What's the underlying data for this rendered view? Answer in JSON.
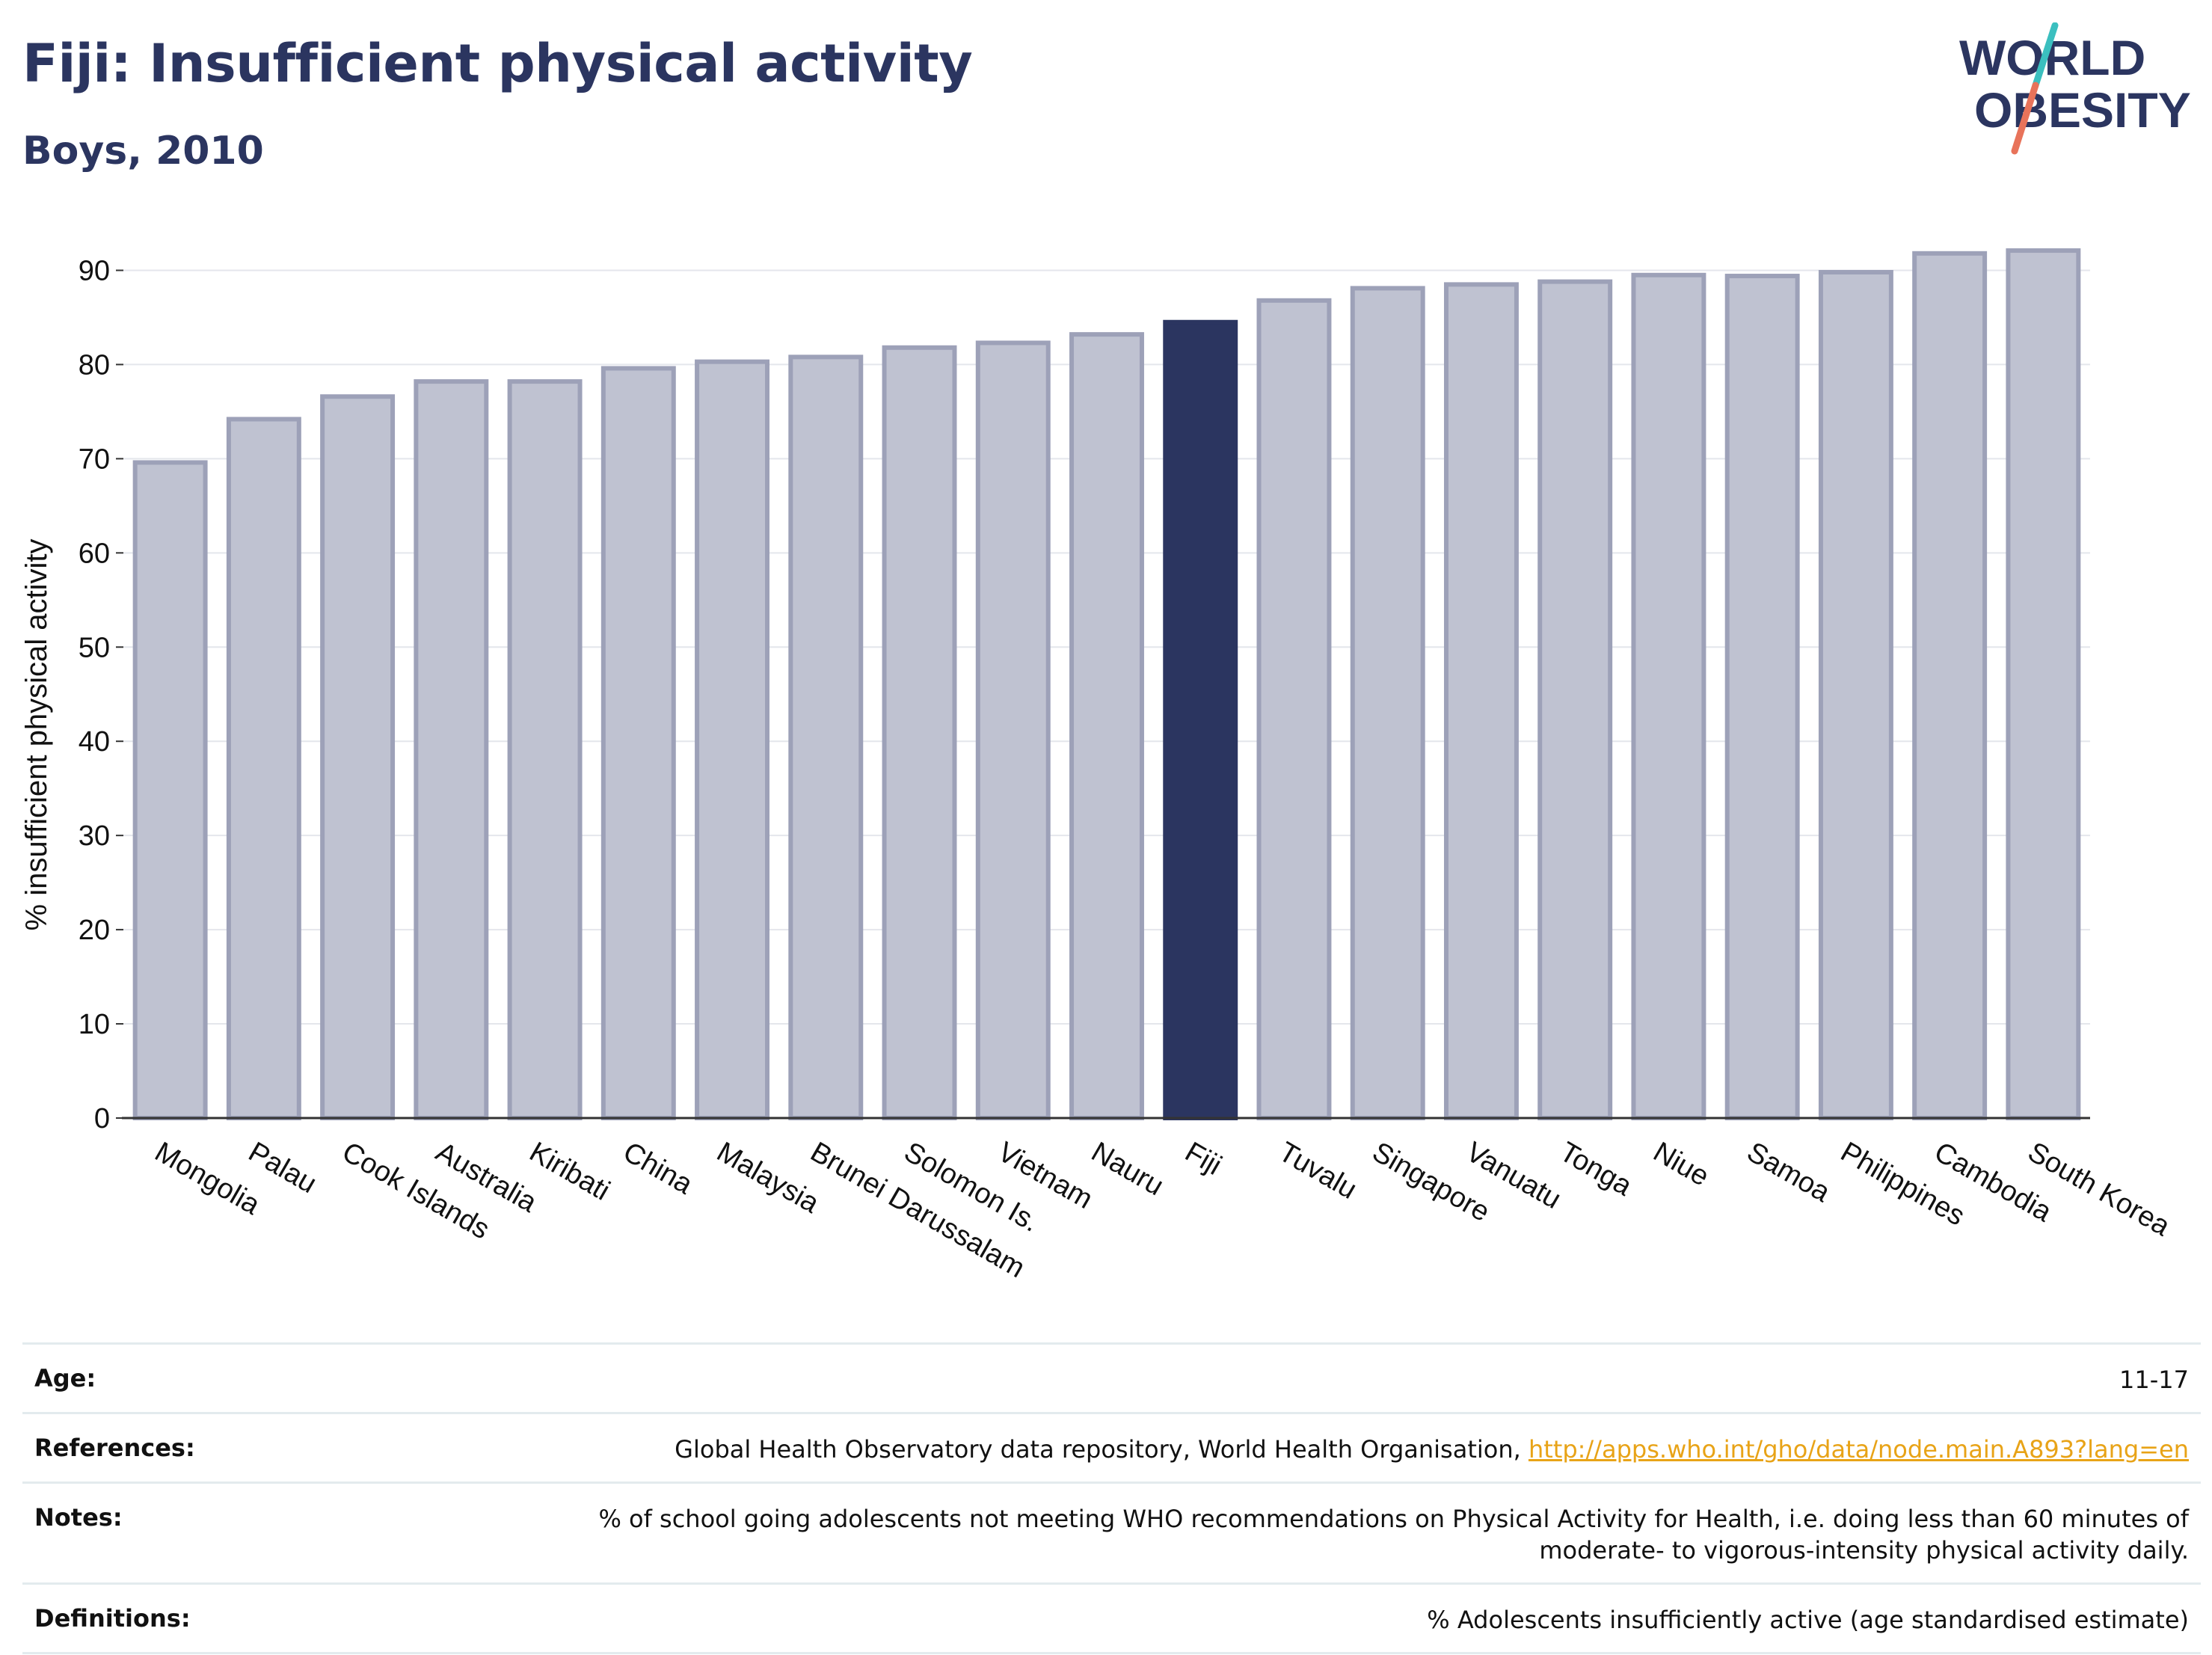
{
  "header": {
    "title": "Fiji: Insufficient physical activity",
    "subtitle": "Boys, 2010"
  },
  "logo": {
    "line1": "WORLD",
    "line2": "OBESITY",
    "text_color": "#2b3560",
    "slash_colors": [
      "#3bbfbf",
      "#e8735a"
    ]
  },
  "colors": {
    "bar": "#bfc2d1",
    "bar_border": "#9da1b8",
    "highlight": "#2b3560",
    "title": "#2b3560",
    "link": "#e8a317",
    "grid": "#e4e6ec"
  },
  "chart_data": {
    "type": "bar",
    "categories": [
      "Mongolia",
      "Palau",
      "Cook Islands",
      "Australia",
      "Kiribati",
      "China",
      "Malaysia",
      "Brunei Darussalam",
      "Solomon Is.",
      "Vietnam",
      "Nauru",
      "Fiji",
      "Tuvalu",
      "Singapore",
      "Vanuatu",
      "Tonga",
      "Niue",
      "Samoa",
      "Philippines",
      "Cambodia",
      "South Korea"
    ],
    "values": [
      69.6,
      74.2,
      76.6,
      78.2,
      78.2,
      79.6,
      80.3,
      80.8,
      81.8,
      82.3,
      83.2,
      84.5,
      86.8,
      88.1,
      88.5,
      88.8,
      89.5,
      89.4,
      89.8,
      91.8,
      92.1
    ],
    "highlight": "Fiji",
    "ylabel": "% insufficient physical activity",
    "xlabel": "",
    "ylim": [
      0,
      92.5
    ],
    "yticks": [
      0,
      10,
      20,
      30,
      40,
      50,
      60,
      70,
      80,
      90
    ],
    "grid": true
  },
  "footer": {
    "age_label": "Age:",
    "age_value": "11-17",
    "references_label": "References:",
    "references_text": "Global Health Observatory data repository, World Health Organisation, ",
    "references_link": "http://apps.who.int/gho/data/node.main.A893?lang=en",
    "notes_label": "Notes:",
    "notes_line1": "% of school going adolescents not meeting WHO recommendations on Physical Activity for Health, i.e. doing less than 60 minutes of",
    "notes_line2": "moderate- to vigorous-intensity physical activity daily.",
    "definitions_label": "Definitions:",
    "definitions_value": "% Adolescents insufficiently active (age standardised estimate)"
  }
}
